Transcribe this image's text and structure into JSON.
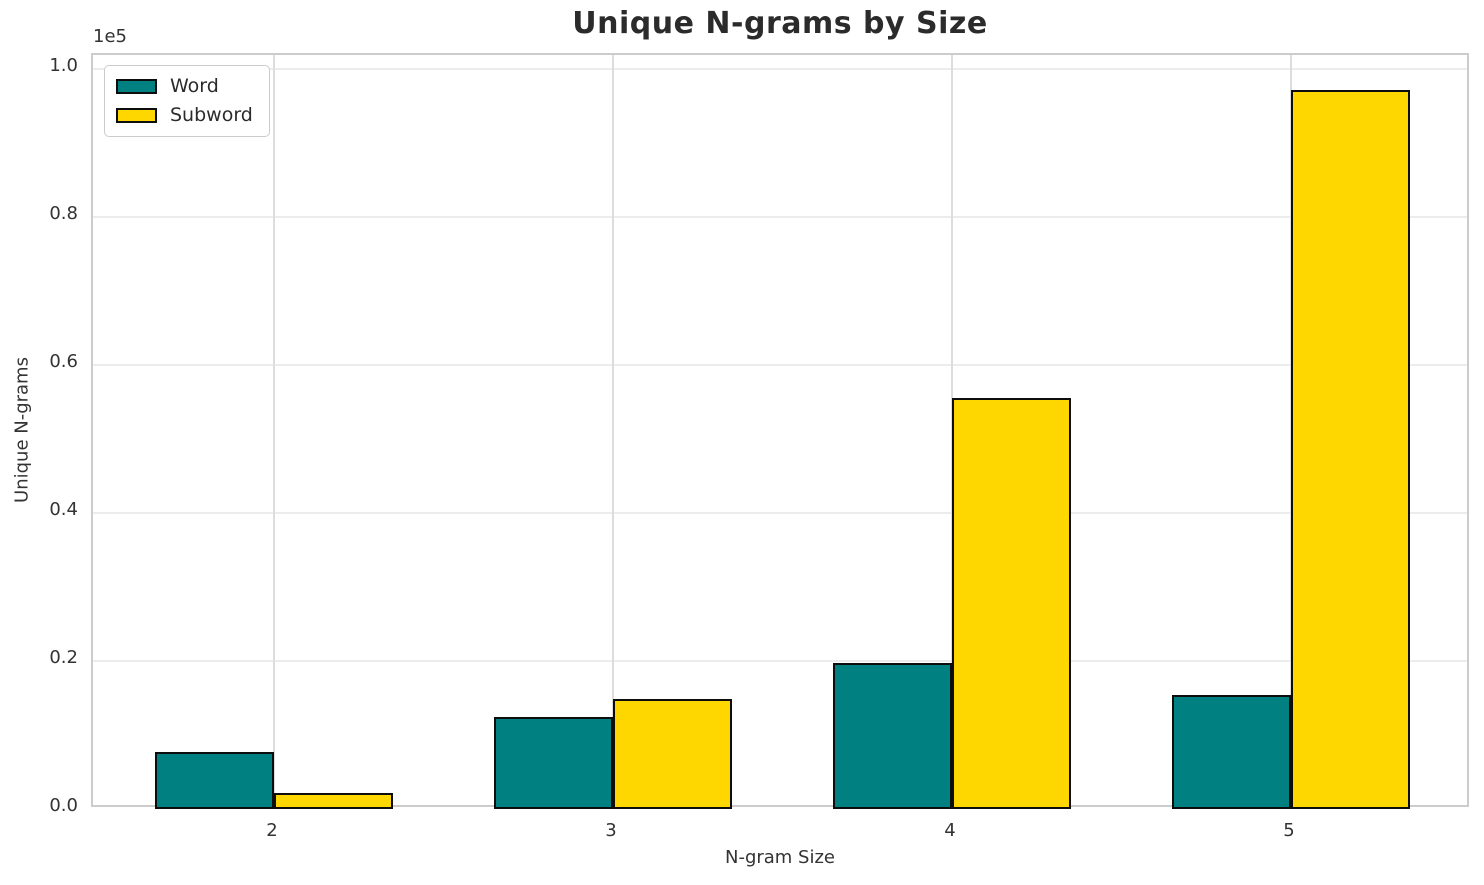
{
  "chart_data": {
    "type": "bar",
    "title": "Unique N-grams by Size",
    "xlabel": "N-gram Size",
    "ylabel": "Unique N-grams",
    "offset_text": "1e5",
    "categories": [
      "2",
      "3",
      "4",
      "5"
    ],
    "series": [
      {
        "name": "Word",
        "color": "#008080",
        "values": [
          7700,
          12500,
          19700,
          15400
        ]
      },
      {
        "name": "Subword",
        "color": "#FFD700",
        "values": [
          2200,
          14800,
          55500,
          97200
        ]
      }
    ],
    "ylim": [
      0,
      100000
    ],
    "y_ticks": [
      {
        "label": "0.0",
        "value": 0
      },
      {
        "label": "0.2",
        "value": 20000
      },
      {
        "label": "0.4",
        "value": 40000
      },
      {
        "label": "0.6",
        "value": 60000
      },
      {
        "label": "0.8",
        "value": 80000
      },
      {
        "label": "1.0",
        "value": 100000
      }
    ],
    "grid": true,
    "legend_position": "upper left"
  }
}
